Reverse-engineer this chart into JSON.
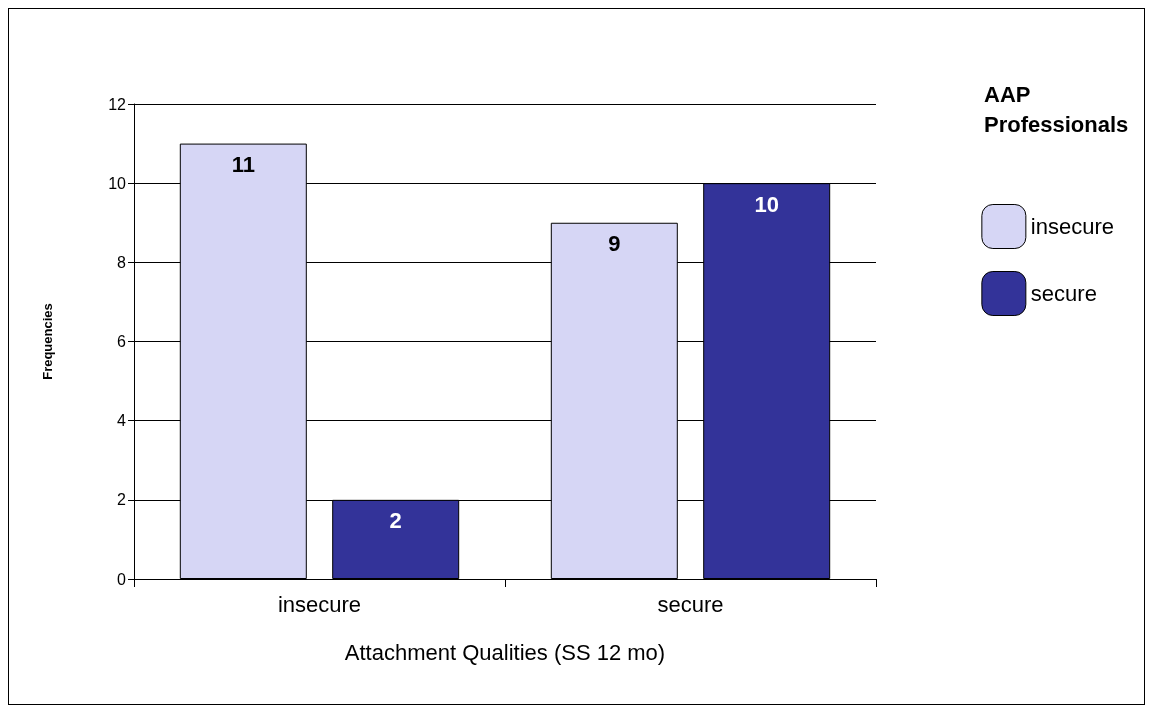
{
  "chart_data": {
    "type": "bar",
    "xlabel": "Attachment Qualities (SS 12 mo)",
    "ylabel": "Frequencies",
    "legend_title": "AAP Professionals",
    "categories": [
      "insecure",
      "secure"
    ],
    "series": [
      {
        "name": "insecure",
        "color": "#d6d6f5",
        "values": [
          11,
          9
        ]
      },
      {
        "name": "secure",
        "color": "#333399",
        "values": [
          2,
          10
        ]
      }
    ],
    "ylim": [
      0,
      12
    ],
    "yticks": [
      0,
      2,
      4,
      6,
      8,
      10,
      12
    ],
    "grid": "y",
    "legend": "right",
    "data_labels": true
  }
}
